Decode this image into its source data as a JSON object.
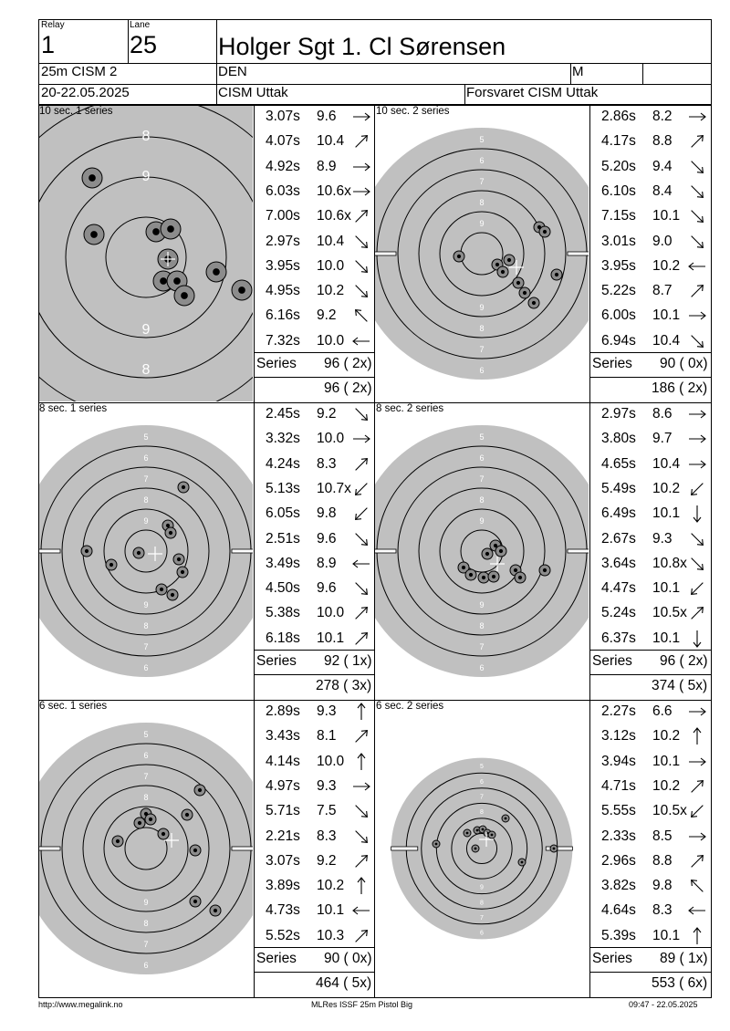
{
  "header": {
    "relay_label": "Relay",
    "relay": "1",
    "lane_label": "Lane",
    "lane": "25",
    "shooter_name": "Holger Sgt 1. Cl Sørensen",
    "event": "25m CISM 2",
    "nation": "DEN",
    "gender": "M",
    "date": "20-22.05.2025",
    "club": "CISM Uttak",
    "competition": "Forsvaret CISM Uttak"
  },
  "series": [
    {
      "title": "10 sec. 1 series",
      "shots": [
        {
          "time": "3.07s",
          "value": "9.6",
          "arrow": "E"
        },
        {
          "time": "4.07s",
          "value": "10.4",
          "arrow": "NE"
        },
        {
          "time": "4.92s",
          "value": "8.9",
          "arrow": "E"
        },
        {
          "time": "6.03s",
          "value": "10.6x",
          "arrow": "E"
        },
        {
          "time": "7.00s",
          "value": "10.6x",
          "arrow": "NE"
        },
        {
          "time": "2.97s",
          "value": "10.4",
          "arrow": "SE"
        },
        {
          "time": "3.95s",
          "value": "10.0",
          "arrow": "SE"
        },
        {
          "time": "4.95s",
          "value": "10.2",
          "arrow": "SE"
        },
        {
          "time": "6.16s",
          "value": "9.2",
          "arrow": "NW"
        },
        {
          "time": "7.32s",
          "value": "10.0",
          "arrow": "W"
        }
      ],
      "series_label": "Series",
      "series_score": "96 ( 2x)",
      "total": "96 ( 2x)"
    },
    {
      "title": "10 sec. 2 series",
      "shots": [
        {
          "time": "2.86s",
          "value": "8.2",
          "arrow": "E"
        },
        {
          "time": "4.17s",
          "value": "8.8",
          "arrow": "NE"
        },
        {
          "time": "5.20s",
          "value": "9.4",
          "arrow": "SE"
        },
        {
          "time": "6.10s",
          "value": "8.4",
          "arrow": "SE"
        },
        {
          "time": "7.15s",
          "value": "10.1",
          "arrow": "SE"
        },
        {
          "time": "3.01s",
          "value": "9.0",
          "arrow": "SE"
        },
        {
          "time": "3.95s",
          "value": "10.2",
          "arrow": "W"
        },
        {
          "time": "5.22s",
          "value": "8.7",
          "arrow": "NE"
        },
        {
          "time": "6.00s",
          "value": "10.1",
          "arrow": "E"
        },
        {
          "time": "6.94s",
          "value": "10.4",
          "arrow": "SE"
        }
      ],
      "series_label": "Series",
      "series_score": "90 ( 0x)",
      "total": "186 ( 2x)"
    },
    {
      "title": "8 sec. 1 series",
      "shots": [
        {
          "time": "2.45s",
          "value": "9.2",
          "arrow": "SE"
        },
        {
          "time": "3.32s",
          "value": "10.0",
          "arrow": "E"
        },
        {
          "time": "4.24s",
          "value": "8.3",
          "arrow": "NE"
        },
        {
          "time": "5.13s",
          "value": "10.7x",
          "arrow": "SW"
        },
        {
          "time": "6.05s",
          "value": "9.8",
          "arrow": "SW"
        },
        {
          "time": "2.51s",
          "value": "9.6",
          "arrow": "SE"
        },
        {
          "time": "3.49s",
          "value": "8.9",
          "arrow": "W"
        },
        {
          "time": "4.50s",
          "value": "9.6",
          "arrow": "SE"
        },
        {
          "time": "5.38s",
          "value": "10.0",
          "arrow": "NE"
        },
        {
          "time": "6.18s",
          "value": "10.1",
          "arrow": "NE"
        }
      ],
      "series_label": "Series",
      "series_score": "92 ( 1x)",
      "total": "278 ( 3x)"
    },
    {
      "title": "8 sec. 2 series",
      "shots": [
        {
          "time": "2.97s",
          "value": "8.6",
          "arrow": "E"
        },
        {
          "time": "3.80s",
          "value": "9.7",
          "arrow": "E"
        },
        {
          "time": "4.65s",
          "value": "10.4",
          "arrow": "E"
        },
        {
          "time": "5.49s",
          "value": "10.2",
          "arrow": "SW"
        },
        {
          "time": "6.49s",
          "value": "10.1",
          "arrow": "S"
        },
        {
          "time": "2.67s",
          "value": "9.3",
          "arrow": "SE"
        },
        {
          "time": "3.64s",
          "value": "10.8x",
          "arrow": "SE"
        },
        {
          "time": "4.47s",
          "value": "10.1",
          "arrow": "SW"
        },
        {
          "time": "5.24s",
          "value": "10.5x",
          "arrow": "NE"
        },
        {
          "time": "6.37s",
          "value": "10.1",
          "arrow": "S"
        }
      ],
      "series_label": "Series",
      "series_score": "96 ( 2x)",
      "total": "374 ( 5x)"
    },
    {
      "title": "6 sec. 1 series",
      "shots": [
        {
          "time": "2.89s",
          "value": "9.3",
          "arrow": "N"
        },
        {
          "time": "3.43s",
          "value": "8.1",
          "arrow": "NE"
        },
        {
          "time": "4.14s",
          "value": "10.0",
          "arrow": "N"
        },
        {
          "time": "4.97s",
          "value": "9.3",
          "arrow": "E"
        },
        {
          "time": "5.71s",
          "value": "7.5",
          "arrow": "SE"
        },
        {
          "time": "2.21s",
          "value": "8.3",
          "arrow": "SE"
        },
        {
          "time": "3.07s",
          "value": "9.2",
          "arrow": "NE"
        },
        {
          "time": "3.89s",
          "value": "10.2",
          "arrow": "N"
        },
        {
          "time": "4.73s",
          "value": "10.1",
          "arrow": "W"
        },
        {
          "time": "5.52s",
          "value": "10.3",
          "arrow": "NE"
        }
      ],
      "series_label": "Series",
      "series_score": "90 ( 0x)",
      "total": "464 ( 5x)"
    },
    {
      "title": "6 sec. 2 series",
      "shots": [
        {
          "time": "2.27s",
          "value": "6.6",
          "arrow": "E"
        },
        {
          "time": "3.12s",
          "value": "10.2",
          "arrow": "N"
        },
        {
          "time": "3.94s",
          "value": "10.1",
          "arrow": "E"
        },
        {
          "time": "4.71s",
          "value": "10.2",
          "arrow": "NE"
        },
        {
          "time": "5.55s",
          "value": "10.5x",
          "arrow": "SW"
        },
        {
          "time": "2.33s",
          "value": "8.5",
          "arrow": "E"
        },
        {
          "time": "2.96s",
          "value": "8.8",
          "arrow": "NE"
        },
        {
          "time": "3.82s",
          "value": "9.8",
          "arrow": "NW"
        },
        {
          "time": "4.64s",
          "value": "8.3",
          "arrow": "W"
        },
        {
          "time": "5.39s",
          "value": "10.1",
          "arrow": "N"
        }
      ],
      "series_label": "Series",
      "series_score": "89 ( 1x)",
      "total": "553 ( 6x)"
    }
  ],
  "targets": [
    {
      "ring_numbers_top": [
        "8",
        "9"
      ],
      "ring_numbers_bottom": [
        "9",
        "8"
      ]
    },
    {
      "ring_numbers_top": [
        "5",
        "6",
        "7",
        "8",
        "9"
      ],
      "ring_numbers_bottom": [
        "9",
        "8",
        "7",
        "6",
        "5"
      ]
    },
    {
      "ring_numbers_top": [
        "5",
        "6",
        "7",
        "8",
        "9"
      ],
      "ring_numbers_bottom": [
        "9",
        "8",
        "7",
        "6",
        "5"
      ]
    },
    {
      "ring_numbers_top": [
        "5",
        "6",
        "7",
        "8",
        "9"
      ],
      "ring_numbers_bottom": [
        "9",
        "8",
        "7",
        "6",
        "5"
      ]
    },
    {
      "ring_numbers_top": [
        "5",
        "6",
        "7",
        "8",
        "9"
      ],
      "ring_numbers_bottom": [
        "9",
        "8",
        "7",
        "6",
        "5"
      ]
    },
    {
      "ring_numbers_top": [
        "5",
        "6",
        "7",
        "8",
        "9"
      ],
      "ring_numbers_bottom": [
        "9",
        "8",
        "7",
        "6",
        "5"
      ]
    }
  ],
  "footer": {
    "url": "http://www.megalink.no",
    "software": "MLRes ISSF 25m Pistol Big",
    "printed": "09:47 - 22.05.2025"
  },
  "colors": {
    "target_grey": "#c0c0c0",
    "hole_grey": "#8c8c8c",
    "ring_line": "#000000"
  }
}
